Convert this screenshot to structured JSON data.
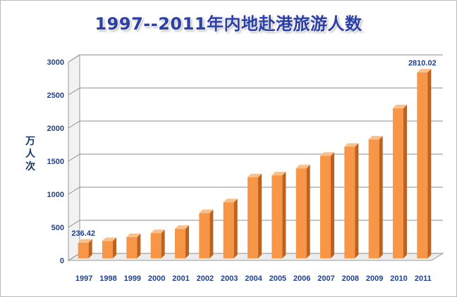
{
  "chart_data": {
    "type": "bar",
    "title": "1997--2011年内地赴港旅游人数",
    "ylabel": "万人次",
    "xlabel": "",
    "categories": [
      "1997",
      "1998",
      "1999",
      "2000",
      "2001",
      "2002",
      "2003",
      "2004",
      "2005",
      "2006",
      "2007",
      "2008",
      "2009",
      "2010",
      "2011"
    ],
    "values": [
      236.42,
      260,
      320,
      380,
      445,
      683,
      847,
      1225,
      1254,
      1360,
      1549,
      1686,
      1796,
      2268,
      2810.02
    ],
    "data_labels": [
      {
        "index": 0,
        "text": "236.42"
      },
      {
        "index": 14,
        "text": "2810.02"
      }
    ],
    "ylim": [
      0,
      3000
    ],
    "yticks": [
      0,
      500,
      1000,
      1500,
      2000,
      2500,
      3000
    ],
    "grid": true,
    "colors": {
      "bar": "#f79646",
      "bar_dark": "#c0621f",
      "bar_light": "#fbbf8a",
      "text": "#1f3f8f",
      "grid": "#8c8c8c"
    }
  }
}
